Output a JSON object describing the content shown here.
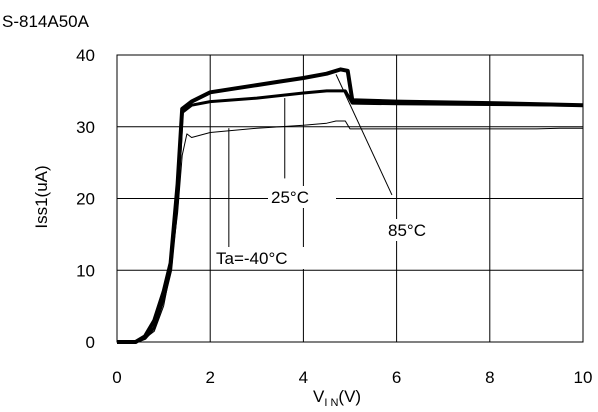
{
  "chart_data": {
    "type": "line",
    "title": "S-814A50A",
    "xlabel": "V",
    "xlabel_sub": "I N",
    "xlabel_unit": "(V)",
    "ylabel": "Iss1(uA)",
    "xlim": [
      0,
      10
    ],
    "ylim": [
      0,
      40
    ],
    "xticks": [
      0,
      2,
      4,
      6,
      8,
      10
    ],
    "yticks": [
      0,
      10,
      20,
      30,
      40
    ],
    "grid": true,
    "series": [
      {
        "name": "Ta=-40°C",
        "x": [
          0,
          0.4,
          0.6,
          0.8,
          1.0,
          1.15,
          1.3,
          1.4,
          1.5,
          1.6,
          2.0,
          3.0,
          4.0,
          4.5,
          4.7,
          4.9,
          5.0,
          6.0,
          8.0,
          9.0,
          9.5,
          10.0
        ],
        "values": [
          0,
          0,
          0.5,
          1.5,
          5,
          10,
          18,
          26,
          29,
          28.5,
          29.2,
          29.8,
          30.2,
          30.5,
          30.8,
          30.8,
          29.7,
          29.7,
          29.7,
          29.7,
          29.8,
          29.8
        ]
      },
      {
        "name": "25°C",
        "x": [
          0,
          0.4,
          0.6,
          0.8,
          1.0,
          1.15,
          1.3,
          1.4,
          1.6,
          2.0,
          3.0,
          4.0,
          4.5,
          4.9,
          5.05,
          6.0,
          8.0,
          10.0
        ],
        "values": [
          0,
          0,
          0.5,
          2,
          6,
          10,
          20,
          32,
          33,
          33.5,
          34,
          34.7,
          35,
          35,
          33.3,
          33.2,
          33.1,
          33
        ]
      },
      {
        "name": "85°C",
        "x": [
          0,
          0.4,
          0.6,
          0.8,
          1.0,
          1.15,
          1.3,
          1.4,
          1.6,
          2.0,
          2.5,
          3.0,
          3.5,
          4.0,
          4.5,
          4.8,
          4.95,
          5.05,
          6.0,
          8.0,
          10.0
        ],
        "values": [
          0,
          0,
          0.8,
          3,
          7,
          11,
          22,
          32.5,
          33.5,
          34.8,
          35.3,
          35.8,
          36.3,
          36.8,
          37.4,
          38,
          37.8,
          33.7,
          33.5,
          33.3,
          33
        ]
      }
    ],
    "annotations": [
      {
        "text": "25°C",
        "series": "25°C"
      },
      {
        "text": "85°C",
        "series": "85°C"
      },
      {
        "text": "Ta=-40°C",
        "series": "Ta=-40°C"
      }
    ]
  }
}
